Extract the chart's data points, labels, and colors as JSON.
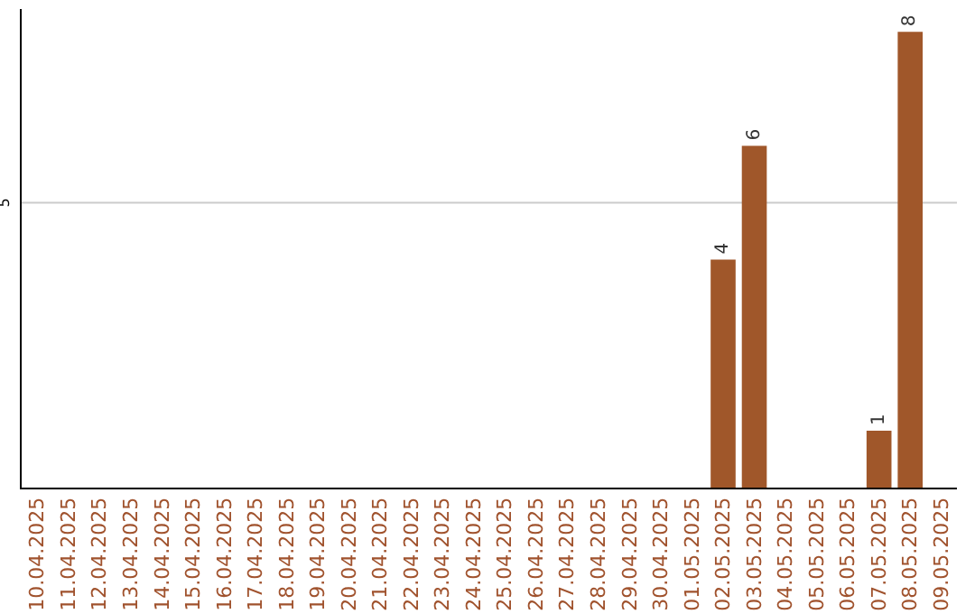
{
  "chart_data": {
    "type": "bar",
    "categories": [
      "10.04.2025",
      "11.04.2025",
      "12.04.2025",
      "13.04.2025",
      "14.04.2025",
      "15.04.2025",
      "16.04.2025",
      "17.04.2025",
      "18.04.2025",
      "19.04.2025",
      "20.04.2025",
      "21.04.2025",
      "22.04.2025",
      "23.04.2025",
      "24.04.2025",
      "25.04.2025",
      "26.04.2025",
      "27.04.2025",
      "28.04.2025",
      "29.04.2025",
      "30.04.2025",
      "01.05.2025",
      "02.05.2025",
      "03.05.2025",
      "04.05.2025",
      "05.05.2025",
      "06.05.2025",
      "07.05.2025",
      "08.05.2025",
      "09.05.2025"
    ],
    "values": [
      null,
      null,
      null,
      null,
      null,
      null,
      null,
      null,
      null,
      null,
      null,
      null,
      null,
      null,
      null,
      null,
      null,
      null,
      null,
      null,
      null,
      null,
      4,
      6,
      null,
      null,
      null,
      1,
      8,
      null
    ],
    "value_labels": [
      null,
      null,
      null,
      null,
      null,
      null,
      null,
      null,
      null,
      null,
      null,
      null,
      null,
      null,
      null,
      null,
      null,
      null,
      null,
      null,
      null,
      null,
      "4",
      "6",
      null,
      null,
      null,
      "1",
      "8",
      null
    ],
    "color": "#a0572a",
    "ylim": [
      0,
      8.4
    ],
    "ref_lines": [
      {
        "axis": "y",
        "value": 5,
        "label": "5",
        "color": "#cccccc"
      }
    ]
  }
}
